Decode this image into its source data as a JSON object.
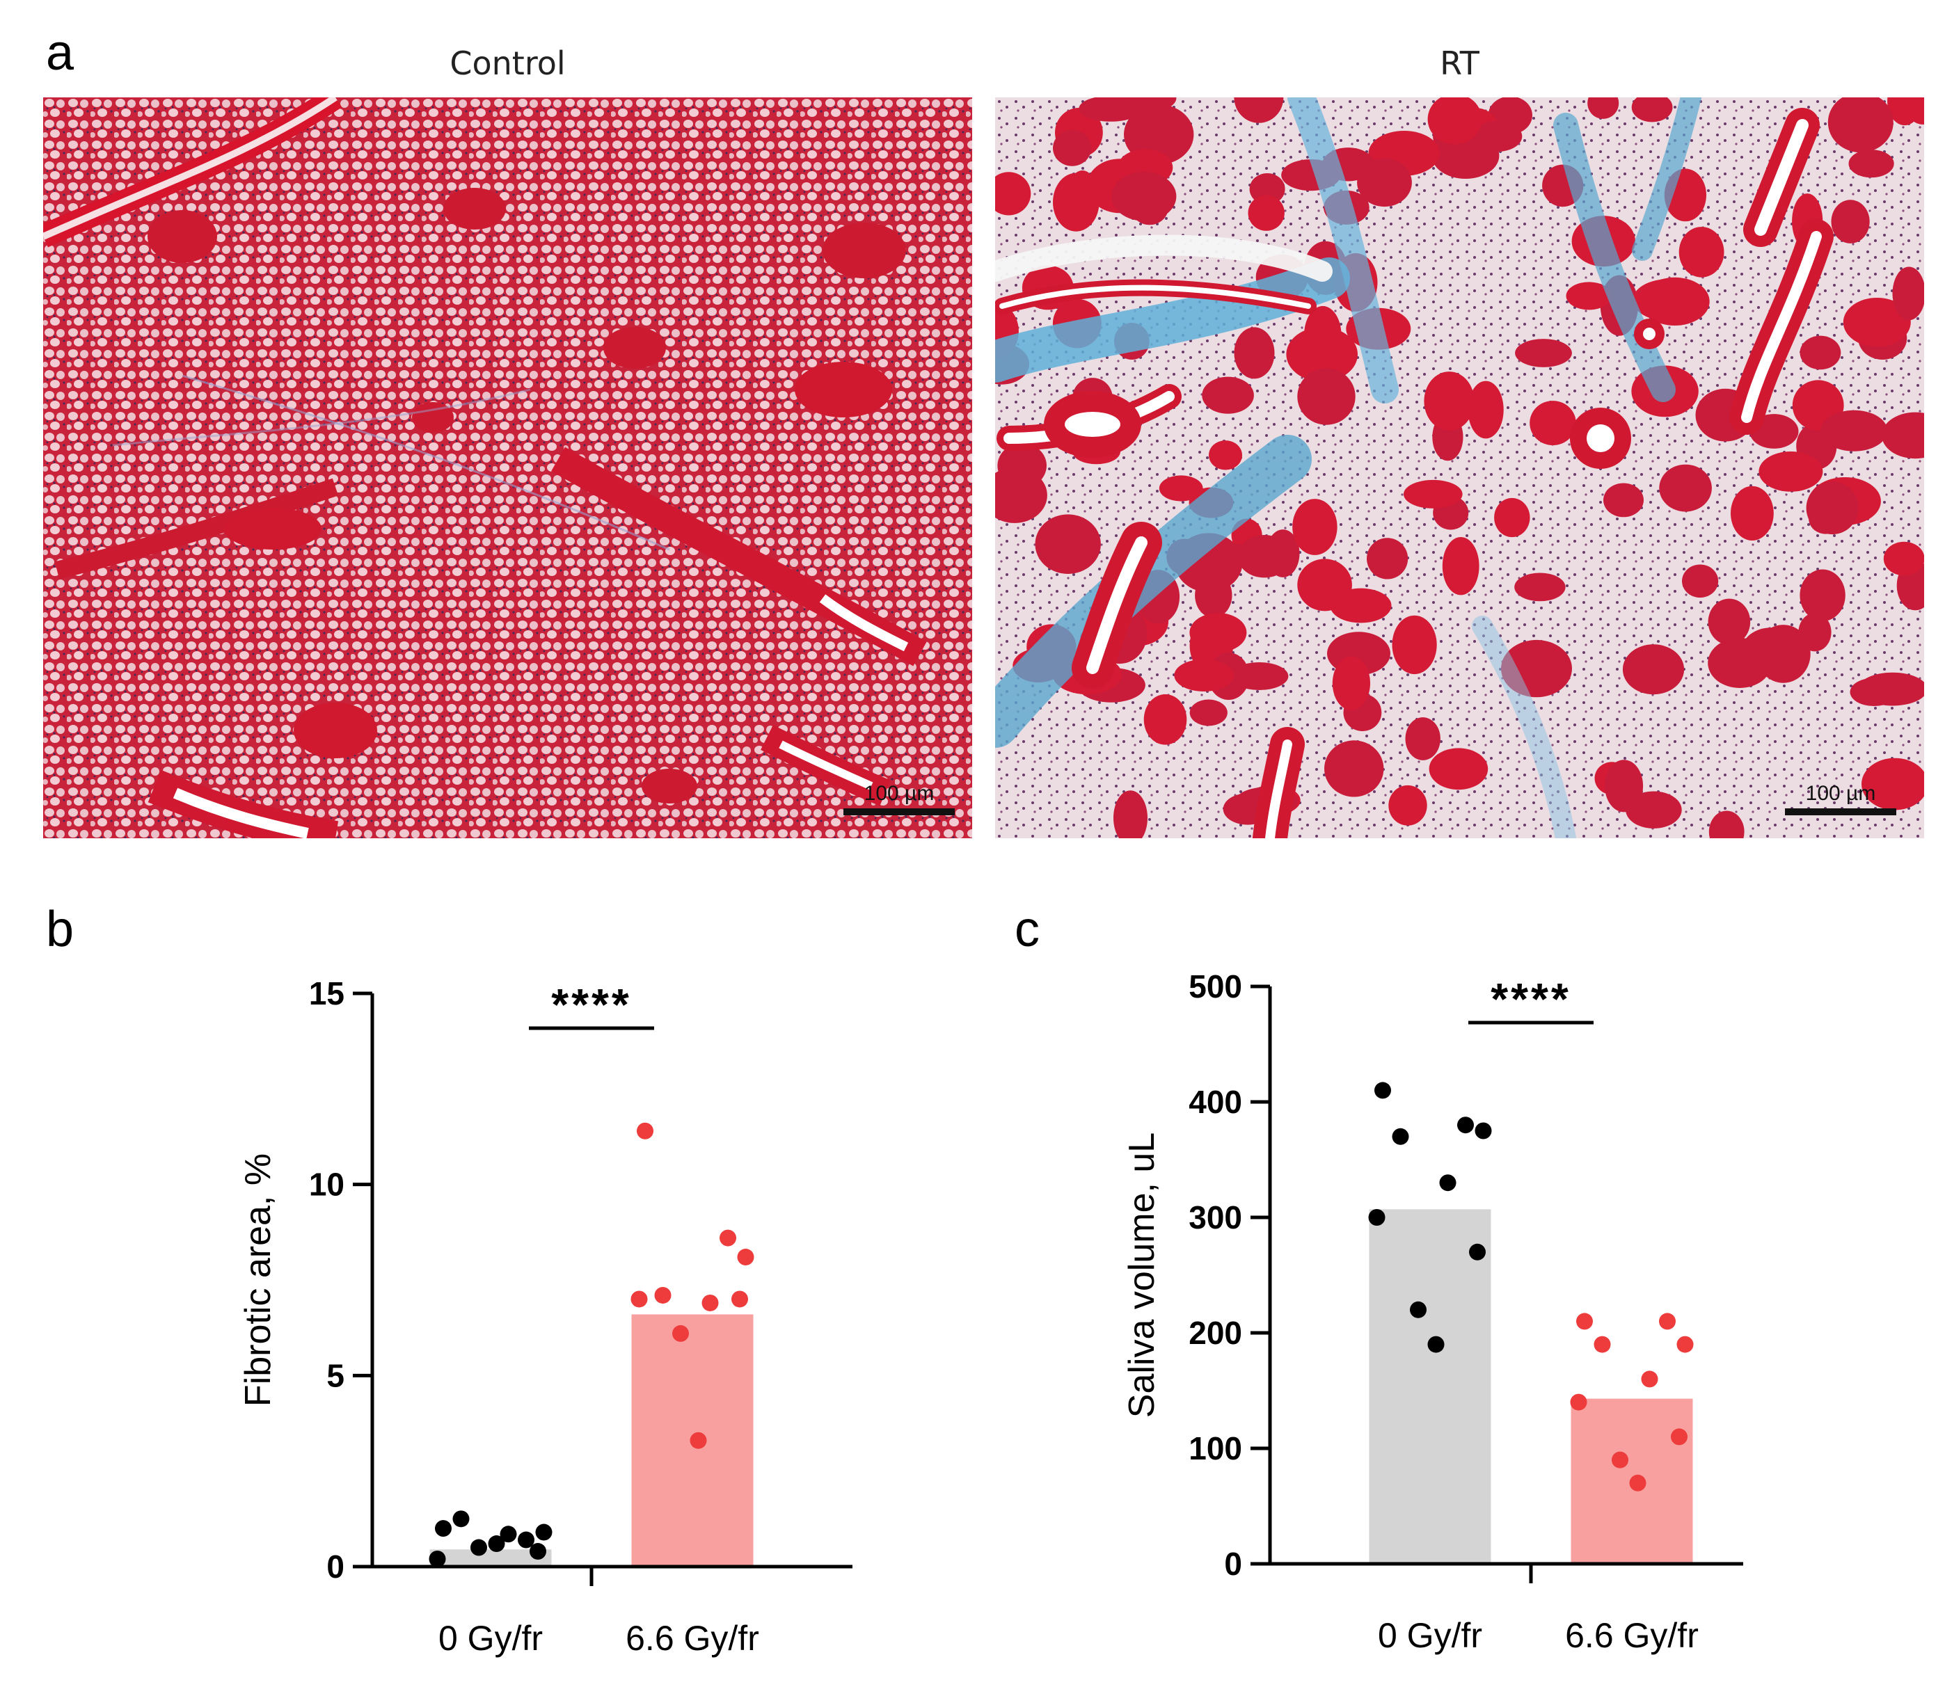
{
  "panels": {
    "a": {
      "letter": "a",
      "left_title": "Control",
      "right_title": "RT",
      "scale_label": "100 µm"
    },
    "b": {
      "letter": "b"
    },
    "c": {
      "letter": "c"
    }
  },
  "colors": {
    "control": "#d4d4d4",
    "rt": "#f8a0a0",
    "control_dot": "#000000",
    "rt_dot": "#ee3b3b",
    "stain_red": "#d42a3c",
    "stain_blue": "#5aa8d0"
  },
  "chart_data": [
    {
      "type": "bar",
      "panel": "b",
      "categories": [
        "0 Gy/fr",
        "6.6 Gy/fr"
      ],
      "values": [
        0.45,
        6.6
      ],
      "points": [
        [
          1.0,
          0.7,
          0.9,
          1.25,
          0.85,
          0.2,
          0.4,
          0.5,
          0.6
        ],
        [
          11.4,
          8.6,
          8.1,
          7.1,
          6.9,
          7.0,
          7.0,
          6.1,
          3.3
        ]
      ],
      "xlabel": "",
      "ylabel": "Fibrotic area, %",
      "ylim": [
        0,
        15
      ],
      "yticks": [
        0,
        5,
        10,
        15
      ],
      "significance": "****",
      "grid": false
    },
    {
      "type": "bar",
      "panel": "c",
      "categories": [
        "0 Gy/fr",
        "6.6 Gy/fr"
      ],
      "values": [
        307,
        143
      ],
      "points": [
        [
          410,
          380,
          375,
          370,
          330,
          300,
          270,
          220,
          190
        ],
        [
          210,
          210,
          190,
          190,
          160,
          140,
          110,
          90,
          70
        ]
      ],
      "xlabel": "",
      "ylabel": "Saliva volume, uL",
      "ylim": [
        0,
        500
      ],
      "yticks": [
        0,
        100,
        200,
        300,
        400,
        500
      ],
      "significance": "****",
      "grid": false
    }
  ]
}
